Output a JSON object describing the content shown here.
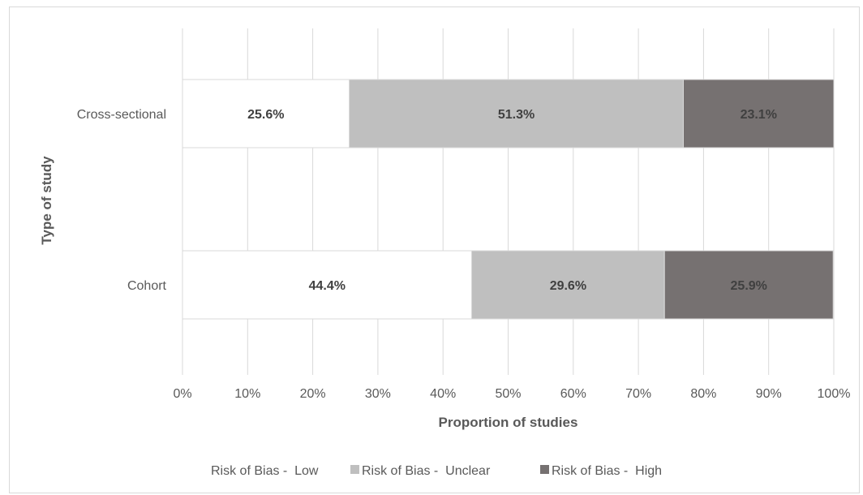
{
  "chart_data": {
    "type": "bar",
    "orientation": "horizontal",
    "stacked": true,
    "categories": [
      "Cross-sectional",
      "Cohort"
    ],
    "series": [
      {
        "name": "Risk of Bias -  Low",
        "values": [
          25.6,
          44.4
        ],
        "labels": [
          "25.6%",
          "44.4%"
        ],
        "color": "#ffffff"
      },
      {
        "name": "Risk of Bias -  Unclear",
        "values": [
          51.3,
          29.6
        ],
        "labels": [
          "51.3%",
          "29.6%"
        ],
        "color": "#bfbfbf"
      },
      {
        "name": "Risk of Bias -  High",
        "values": [
          23.1,
          25.9
        ],
        "labels": [
          "23.1%",
          "25.9%"
        ],
        "color": "#767171"
      }
    ],
    "xlabel": "Proportion of studies",
    "ylabel": "Type of study",
    "xlim": [
      0,
      100
    ],
    "x_ticks": [
      "0%",
      "10%",
      "20%",
      "30%",
      "40%",
      "50%",
      "60%",
      "70%",
      "80%",
      "90%",
      "100%"
    ],
    "grid": true,
    "legend_position": "bottom"
  }
}
